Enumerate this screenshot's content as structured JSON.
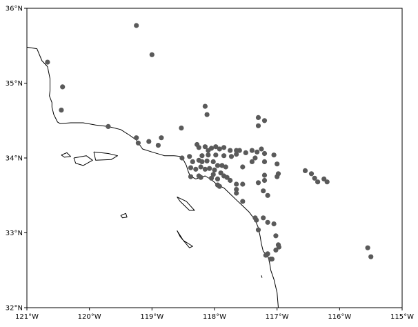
{
  "map": {
    "xlim": [
      -121,
      -115
    ],
    "ylim": [
      32,
      36
    ],
    "x_ticks": [
      {
        "value": -121,
        "label": "121°W"
      },
      {
        "value": -120,
        "label": "120°W"
      },
      {
        "value": -119,
        "label": "119°W"
      },
      {
        "value": -118,
        "label": "118°W"
      },
      {
        "value": -117,
        "label": "117°W"
      },
      {
        "value": -116,
        "label": "116°W"
      },
      {
        "value": -115,
        "label": "115°W"
      }
    ],
    "y_ticks": [
      {
        "value": 32,
        "label": "32°N"
      },
      {
        "value": 33,
        "label": "33°N"
      },
      {
        "value": 34,
        "label": "34°N"
      },
      {
        "value": 35,
        "label": "35°N"
      },
      {
        "value": 36,
        "label": "36°N"
      }
    ],
    "marker_color": "#5a5a5a",
    "coast_color": "#000000",
    "coastline": [
      [
        -121.0,
        35.48
      ],
      [
        -120.84,
        35.46
      ],
      [
        -120.76,
        35.3
      ],
      [
        -120.67,
        35.22
      ],
      [
        -120.63,
        35.06
      ],
      [
        -120.63,
        34.9
      ],
      [
        -120.64,
        34.83
      ],
      [
        -120.6,
        34.74
      ],
      [
        -120.6,
        34.68
      ],
      [
        -120.57,
        34.58
      ],
      [
        -120.51,
        34.48
      ],
      [
        -120.47,
        34.46
      ],
      [
        -120.3,
        34.47
      ],
      [
        -120.1,
        34.47
      ],
      [
        -119.9,
        34.44
      ],
      [
        -119.7,
        34.42
      ],
      [
        -119.5,
        34.38
      ],
      [
        -119.35,
        34.3
      ],
      [
        -119.25,
        34.24
      ],
      [
        -119.2,
        34.18
      ],
      [
        -119.15,
        34.12
      ],
      [
        -119.0,
        34.08
      ],
      [
        -118.8,
        34.03
      ],
      [
        -118.65,
        34.03
      ],
      [
        -118.55,
        34.02
      ],
      [
        -118.5,
        33.98
      ],
      [
        -118.45,
        33.9
      ],
      [
        -118.42,
        33.82
      ],
      [
        -118.39,
        33.76
      ],
      [
        -118.3,
        33.72
      ],
      [
        -118.22,
        33.74
      ],
      [
        -118.15,
        33.76
      ],
      [
        -118.05,
        33.71
      ],
      [
        -117.95,
        33.64
      ],
      [
        -117.85,
        33.6
      ],
      [
        -117.75,
        33.52
      ],
      [
        -117.65,
        33.44
      ],
      [
        -117.55,
        33.36
      ],
      [
        -117.45,
        33.28
      ],
      [
        -117.35,
        33.17
      ],
      [
        -117.3,
        33.07
      ],
      [
        -117.27,
        32.95
      ],
      [
        -117.25,
        32.85
      ],
      [
        -117.22,
        32.75
      ],
      [
        -117.15,
        32.7
      ],
      [
        -117.12,
        32.6
      ],
      [
        -117.1,
        32.5
      ],
      [
        -117.05,
        32.38
      ],
      [
        -117.0,
        32.2
      ],
      [
        -116.98,
        32.0
      ]
    ],
    "islands": [
      [
        [
          -120.45,
          34.04
        ],
        [
          -120.36,
          34.07
        ],
        [
          -120.3,
          34.02
        ],
        [
          -120.4,
          34.01
        ],
        [
          -120.45,
          34.04
        ]
      ],
      [
        [
          -120.25,
          34.0
        ],
        [
          -120.05,
          34.03
        ],
        [
          -119.95,
          33.97
        ],
        [
          -120.1,
          33.9
        ],
        [
          -120.22,
          33.93
        ],
        [
          -120.25,
          34.0
        ]
      ],
      [
        [
          -119.93,
          34.08
        ],
        [
          -119.7,
          34.06
        ],
        [
          -119.55,
          34.03
        ],
        [
          -119.65,
          33.98
        ],
        [
          -119.9,
          33.97
        ],
        [
          -119.93,
          34.08
        ]
      ],
      [
        [
          -119.5,
          33.23
        ],
        [
          -119.42,
          33.26
        ],
        [
          -119.4,
          33.21
        ],
        [
          -119.47,
          33.2
        ],
        [
          -119.5,
          33.23
        ]
      ],
      [
        [
          -118.6,
          33.48
        ],
        [
          -118.45,
          33.42
        ],
        [
          -118.32,
          33.3
        ],
        [
          -118.4,
          33.3
        ],
        [
          -118.55,
          33.42
        ],
        [
          -118.6,
          33.48
        ]
      ],
      [
        [
          -118.6,
          33.03
        ],
        [
          -118.5,
          32.9
        ],
        [
          -118.35,
          32.82
        ],
        [
          -118.4,
          32.8
        ],
        [
          -118.55,
          32.95
        ],
        [
          -118.6,
          33.03
        ]
      ],
      [
        [
          -117.25,
          32.43
        ],
        [
          -117.24,
          32.4
        ]
      ]
    ],
    "points": [
      [
        -119.25,
        35.77
      ],
      [
        -119.0,
        35.38
      ],
      [
        -120.67,
        35.28
      ],
      [
        -120.43,
        34.95
      ],
      [
        -120.45,
        34.64
      ],
      [
        -119.7,
        34.42
      ],
      [
        -118.15,
        34.69
      ],
      [
        -118.12,
        34.58
      ],
      [
        -117.3,
        34.54
      ],
      [
        -117.2,
        34.5
      ],
      [
        -117.3,
        34.43
      ],
      [
        -118.53,
        34.4
      ],
      [
        -119.25,
        34.27
      ],
      [
        -118.85,
        34.27
      ],
      [
        -119.22,
        34.2
      ],
      [
        -119.05,
        34.22
      ],
      [
        -118.9,
        34.17
      ],
      [
        -118.28,
        34.18
      ],
      [
        -118.25,
        34.14
      ],
      [
        -118.15,
        34.15
      ],
      [
        -118.1,
        34.1
      ],
      [
        -118.05,
        34.13
      ],
      [
        -117.98,
        34.15
      ],
      [
        -117.92,
        34.12
      ],
      [
        -117.85,
        34.14
      ],
      [
        -117.75,
        34.1
      ],
      [
        -117.65,
        34.1
      ],
      [
        -117.6,
        34.1
      ],
      [
        -117.5,
        34.07
      ],
      [
        -117.4,
        34.1
      ],
      [
        -117.32,
        34.08
      ],
      [
        -117.25,
        34.12
      ],
      [
        -117.2,
        34.06
      ],
      [
        -117.05,
        34.04
      ],
      [
        -117.35,
        34.0
      ],
      [
        -117.4,
        33.95
      ],
      [
        -117.2,
        33.95
      ],
      [
        -117.0,
        33.92
      ],
      [
        -118.52,
        34.0
      ],
      [
        -118.4,
        34.02
      ],
      [
        -118.2,
        34.03
      ],
      [
        -118.1,
        34.04
      ],
      [
        -117.98,
        34.04
      ],
      [
        -117.85,
        34.03
      ],
      [
        -117.73,
        34.02
      ],
      [
        -117.65,
        34.05
      ],
      [
        -118.35,
        33.95
      ],
      [
        -118.25,
        33.97
      ],
      [
        -118.2,
        33.95
      ],
      [
        -118.12,
        33.96
      ],
      [
        -118.02,
        33.95
      ],
      [
        -117.95,
        33.9
      ],
      [
        -117.88,
        33.9
      ],
      [
        -117.82,
        33.88
      ],
      [
        -117.55,
        33.88
      ],
      [
        -118.38,
        33.87
      ],
      [
        -118.3,
        33.85
      ],
      [
        -118.22,
        33.88
      ],
      [
        -118.15,
        33.85
      ],
      [
        -118.08,
        33.86
      ],
      [
        -118.0,
        33.84
      ],
      [
        -117.9,
        33.8
      ],
      [
        -117.85,
        33.76
      ],
      [
        -118.02,
        33.78
      ],
      [
        -118.05,
        33.73
      ],
      [
        -117.95,
        33.72
      ],
      [
        -117.8,
        33.74
      ],
      [
        -117.75,
        33.7
      ],
      [
        -118.38,
        33.75
      ],
      [
        -118.25,
        33.76
      ],
      [
        -118.22,
        33.74
      ],
      [
        -117.65,
        33.65
      ],
      [
        -117.55,
        33.65
      ],
      [
        -117.95,
        33.64
      ],
      [
        -117.92,
        33.62
      ],
      [
        -117.65,
        33.58
      ],
      [
        -117.65,
        33.53
      ],
      [
        -117.3,
        33.67
      ],
      [
        -117.2,
        33.7
      ],
      [
        -117.2,
        33.77
      ],
      [
        -117.22,
        33.56
      ],
      [
        -117.15,
        33.5
      ],
      [
        -117.0,
        33.75
      ],
      [
        -116.98,
        33.79
      ],
      [
        -117.55,
        33.42
      ],
      [
        -117.35,
        33.2
      ],
      [
        -117.33,
        33.17
      ],
      [
        -117.22,
        33.2
      ],
      [
        -117.15,
        33.14
      ],
      [
        -117.05,
        33.12
      ],
      [
        -117.3,
        33.04
      ],
      [
        -117.02,
        32.96
      ],
      [
        -116.98,
        32.84
      ],
      [
        -116.97,
        32.81
      ],
      [
        -117.02,
        32.77
      ],
      [
        -117.15,
        32.72
      ],
      [
        -117.18,
        32.7
      ],
      [
        -117.1,
        32.65
      ],
      [
        -117.08,
        32.65
      ],
      [
        -116.55,
        33.83
      ],
      [
        -116.45,
        33.79
      ],
      [
        -116.4,
        33.73
      ],
      [
        -116.35,
        33.68
      ],
      [
        -116.25,
        33.72
      ],
      [
        -116.2,
        33.68
      ],
      [
        -115.55,
        32.8
      ],
      [
        -115.5,
        32.68
      ]
    ]
  }
}
